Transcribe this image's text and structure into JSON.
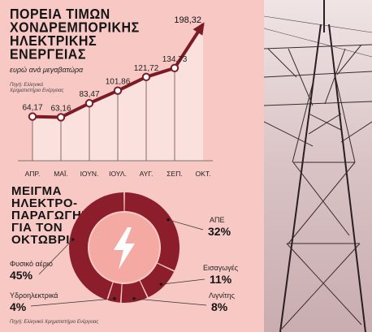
{
  "header": {
    "title_lines": [
      "ΠΟΡΕΙΑ ΤΙΜΩΝ",
      "ΧΟΝΔΡΕΜΠΟΡΙΚΗΣ",
      "ΗΛΕΚΤΡΙΚΗΣ",
      "ΕΝΕΡΓΕΙΑΣ"
    ],
    "subtitle": "ευρώ ανά μεγαβατώρα",
    "source": "Πηγή: Ελληνικό Χρηματιστήριο Ενέργειας"
  },
  "mix": {
    "title_lines": [
      "ΜΕΙΓΜΑ",
      "ΗΛΕΚΤΡΟ-",
      "ΠΑΡΑΓΩΓΗΣ",
      "ΓΙΑ ΤΟΝ",
      "ΟΚΤΩΒΡΙΟ"
    ],
    "source": "Πηγή: Ελληνικό Χρηματιστήριο Ενέργειας",
    "icon": "lightning-bolt-icon"
  },
  "colors": {
    "panel": "#f7c8c4",
    "line": "#7a1b25",
    "donut": "#8b1e2a",
    "accent_light": "#f4a9a3"
  },
  "chart_data": [
    {
      "type": "line",
      "categories": [
        "ΑΠΡ.",
        "ΜΑΪ.",
        "ΙΟΥΝ.",
        "ΙΟΥΛ.",
        "ΑΥΓ.",
        "ΣΕΠ.",
        "ΟΚΤ."
      ],
      "values": [
        64.17,
        63.16,
        83.47,
        101.86,
        121.72,
        134.73,
        198.32
      ],
      "value_labels": [
        "64,17",
        "63,16",
        "83,47",
        "101,86",
        "121,72",
        "134,73",
        "198,32"
      ],
      "title": "ΠΟΡΕΙΑ ΤΙΜΩΝ ΧΟΝΔΡΕΜΠΟΡΙΚΗΣ ΗΛΕΚΤΡΙΚΗΣ ΕΝΕΡΓΕΙΑΣ",
      "ylabel": "ευρώ ανά μεγαβατώρα",
      "ylim": [
        0,
        210
      ]
    },
    {
      "type": "pie",
      "title": "ΜΕΙΓΜΑ ΗΛΕΚΤΡΟΠΑΡΑΓΩΓΗΣ ΓΙΑ ΤΟΝ ΟΚΤΩΒΡΙΟ",
      "slices": [
        {
          "name": "ΑΠΕ",
          "value": 32,
          "label": "32%"
        },
        {
          "name": "Εισαγωγές",
          "value": 11,
          "label": "11%"
        },
        {
          "name": "Λιγνίτης",
          "value": 8,
          "label": "8%"
        },
        {
          "name": "Υδροηλεκτρικά",
          "value": 4,
          "label": "4%"
        },
        {
          "name": "Φυσικό αέριο",
          "value": 45,
          "label": "45%"
        }
      ]
    }
  ]
}
